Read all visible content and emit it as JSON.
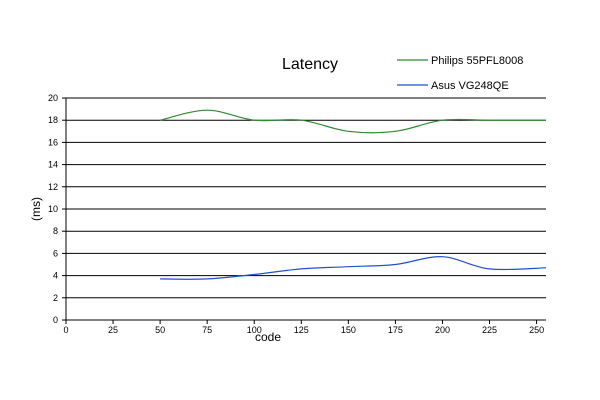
{
  "chart_data": {
    "type": "line",
    "title": "Latency",
    "xlabel": "code",
    "ylabel": "(ms)",
    "xlim": [
      0,
      255
    ],
    "ylim": [
      0,
      20
    ],
    "xticks": [
      0,
      25,
      50,
      75,
      100,
      125,
      150,
      175,
      200,
      225,
      250
    ],
    "yticks": [
      0,
      2,
      4,
      6,
      8,
      10,
      12,
      14,
      16,
      18,
      20
    ],
    "grid": "horizontal",
    "legend": "top-right",
    "series": [
      {
        "name": "Philips 55PFL8008",
        "color": "#2e8b2e",
        "x": [
          50,
          75,
          100,
          125,
          150,
          175,
          200,
          225,
          255
        ],
        "y": [
          18.0,
          18.9,
          18.0,
          18.0,
          17.0,
          17.0,
          18.0,
          18.0,
          18.0
        ]
      },
      {
        "name": "Asus VG248QE",
        "color": "#1f4fd6",
        "x": [
          50,
          75,
          100,
          125,
          150,
          175,
          200,
          225,
          255
        ],
        "y": [
          3.7,
          3.7,
          4.1,
          4.6,
          4.8,
          5.0,
          5.7,
          4.6,
          4.7
        ]
      }
    ]
  }
}
